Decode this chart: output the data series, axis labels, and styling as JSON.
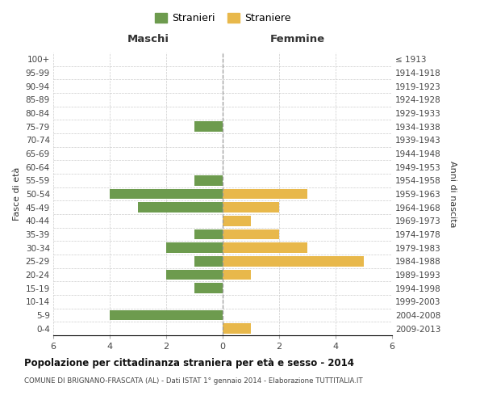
{
  "age_groups": [
    "100+",
    "95-99",
    "90-94",
    "85-89",
    "80-84",
    "75-79",
    "70-74",
    "65-69",
    "60-64",
    "55-59",
    "50-54",
    "45-49",
    "40-44",
    "35-39",
    "30-34",
    "25-29",
    "20-24",
    "15-19",
    "10-14",
    "5-9",
    "0-4"
  ],
  "birth_years": [
    "≤ 1913",
    "1914-1918",
    "1919-1923",
    "1924-1928",
    "1929-1933",
    "1934-1938",
    "1939-1943",
    "1944-1948",
    "1949-1953",
    "1954-1958",
    "1959-1963",
    "1964-1968",
    "1969-1973",
    "1974-1978",
    "1979-1983",
    "1984-1988",
    "1989-1993",
    "1994-1998",
    "1999-2003",
    "2004-2008",
    "2009-2013"
  ],
  "maschi": [
    0,
    0,
    0,
    0,
    0,
    1,
    0,
    0,
    0,
    1,
    4,
    3,
    0,
    1,
    2,
    1,
    2,
    1,
    0,
    4,
    0
  ],
  "femmine": [
    0,
    0,
    0,
    0,
    0,
    0,
    0,
    0,
    0,
    0,
    3,
    2,
    1,
    2,
    3,
    5,
    1,
    0,
    0,
    0,
    1
  ],
  "maschi_color": "#6d9b4e",
  "femmine_color": "#e8b84b",
  "title": "Popolazione per cittadinanza straniera per età e sesso - 2014",
  "subtitle": "COMUNE DI BRIGNANO-FRASCATA (AL) - Dati ISTAT 1° gennaio 2014 - Elaborazione TUTTITALIA.IT",
  "xlabel_left": "Maschi",
  "xlabel_right": "Femmine",
  "ylabel_left": "Fasce di età",
  "ylabel_right": "Anni di nascita",
  "legend_maschi": "Stranieri",
  "legend_femmine": "Straniere",
  "xlim": 6,
  "background_color": "#ffffff",
  "grid_color": "#cccccc"
}
